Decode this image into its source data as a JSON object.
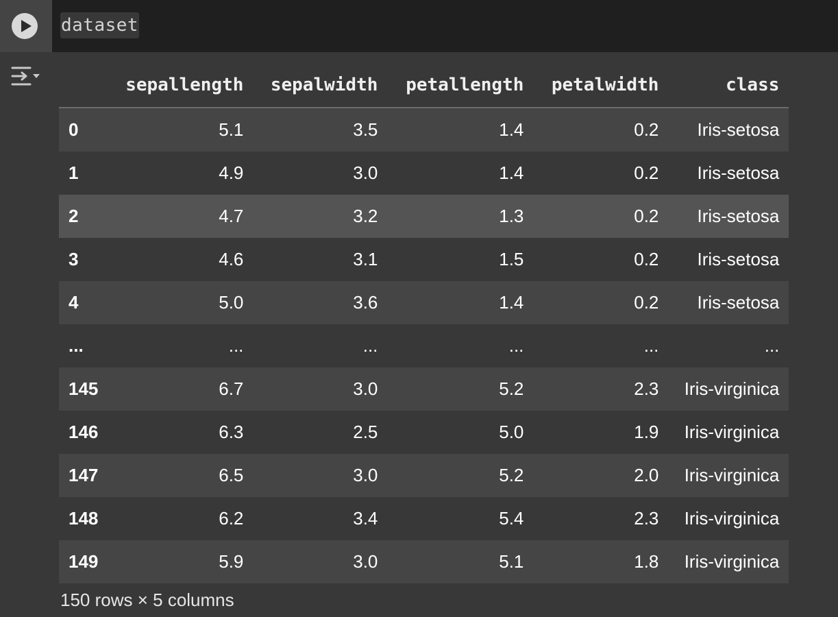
{
  "cell": {
    "code": "dataset"
  },
  "table": {
    "columns": [
      "sepallength",
      "sepalwidth",
      "petallength",
      "petalwidth",
      "class"
    ],
    "rows": [
      {
        "index": "0",
        "cells": [
          "5.1",
          "3.5",
          "1.4",
          "0.2",
          "Iris-setosa"
        ]
      },
      {
        "index": "1",
        "cells": [
          "4.9",
          "3.0",
          "1.4",
          "0.2",
          "Iris-setosa"
        ]
      },
      {
        "index": "2",
        "cells": [
          "4.7",
          "3.2",
          "1.3",
          "0.2",
          "Iris-setosa"
        ]
      },
      {
        "index": "3",
        "cells": [
          "4.6",
          "3.1",
          "1.5",
          "0.2",
          "Iris-setosa"
        ]
      },
      {
        "index": "4",
        "cells": [
          "5.0",
          "3.6",
          "1.4",
          "0.2",
          "Iris-setosa"
        ]
      },
      {
        "index": "...",
        "cells": [
          "...",
          "...",
          "...",
          "...",
          "..."
        ]
      },
      {
        "index": "145",
        "cells": [
          "6.7",
          "3.0",
          "5.2",
          "2.3",
          "Iris-virginica"
        ]
      },
      {
        "index": "146",
        "cells": [
          "6.3",
          "2.5",
          "5.0",
          "1.9",
          "Iris-virginica"
        ]
      },
      {
        "index": "147",
        "cells": [
          "6.5",
          "3.0",
          "5.2",
          "2.0",
          "Iris-virginica"
        ]
      },
      {
        "index": "148",
        "cells": [
          "6.2",
          "3.4",
          "5.4",
          "2.3",
          "Iris-virginica"
        ]
      },
      {
        "index": "149",
        "cells": [
          "5.9",
          "3.0",
          "5.1",
          "1.8",
          "Iris-virginica"
        ]
      }
    ]
  },
  "footer": {
    "shape_text": "150 rows × 5 columns"
  },
  "icons": {
    "run": "play-icon",
    "output_toggle": "output-toggle-icon"
  }
}
